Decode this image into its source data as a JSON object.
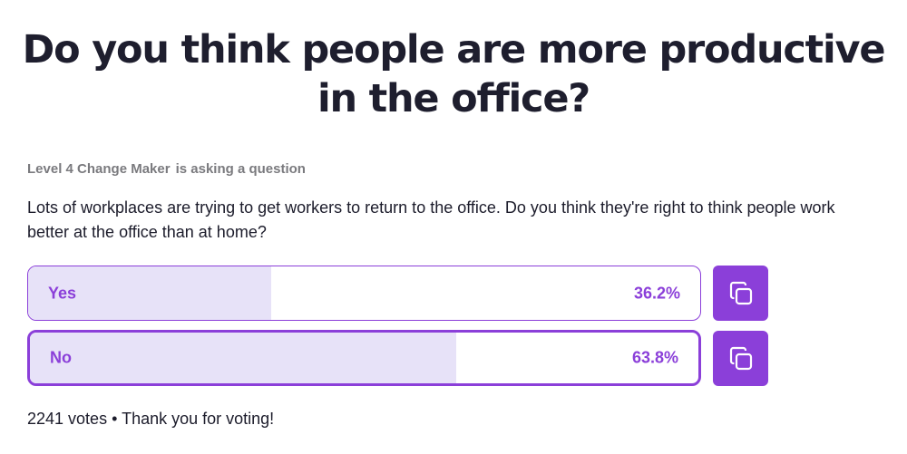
{
  "poll": {
    "title": "Do you think people are more productive in the office?",
    "asker_name": "Level 4 Change Maker",
    "asker_suffix": "is asking a question",
    "question": "Lots of workplaces are trying to get workers to return to the office. Do you think they're right to think people work better at the office than at home?",
    "options": [
      {
        "label": "Yes",
        "percent_text": "36.2%",
        "percent": 36.2,
        "icon": "copy-icon"
      },
      {
        "label": "No",
        "percent_text": "63.8%",
        "percent": 63.8,
        "icon": "copy-icon"
      }
    ],
    "votes_text": "2241 votes",
    "separator": "•",
    "thanks_text": "Thank you for voting!"
  },
  "colors": {
    "accent": "#8b3fd9",
    "fill": "#e7e2f8",
    "title": "#1e1e2e",
    "muted": "#7a7a7e"
  }
}
